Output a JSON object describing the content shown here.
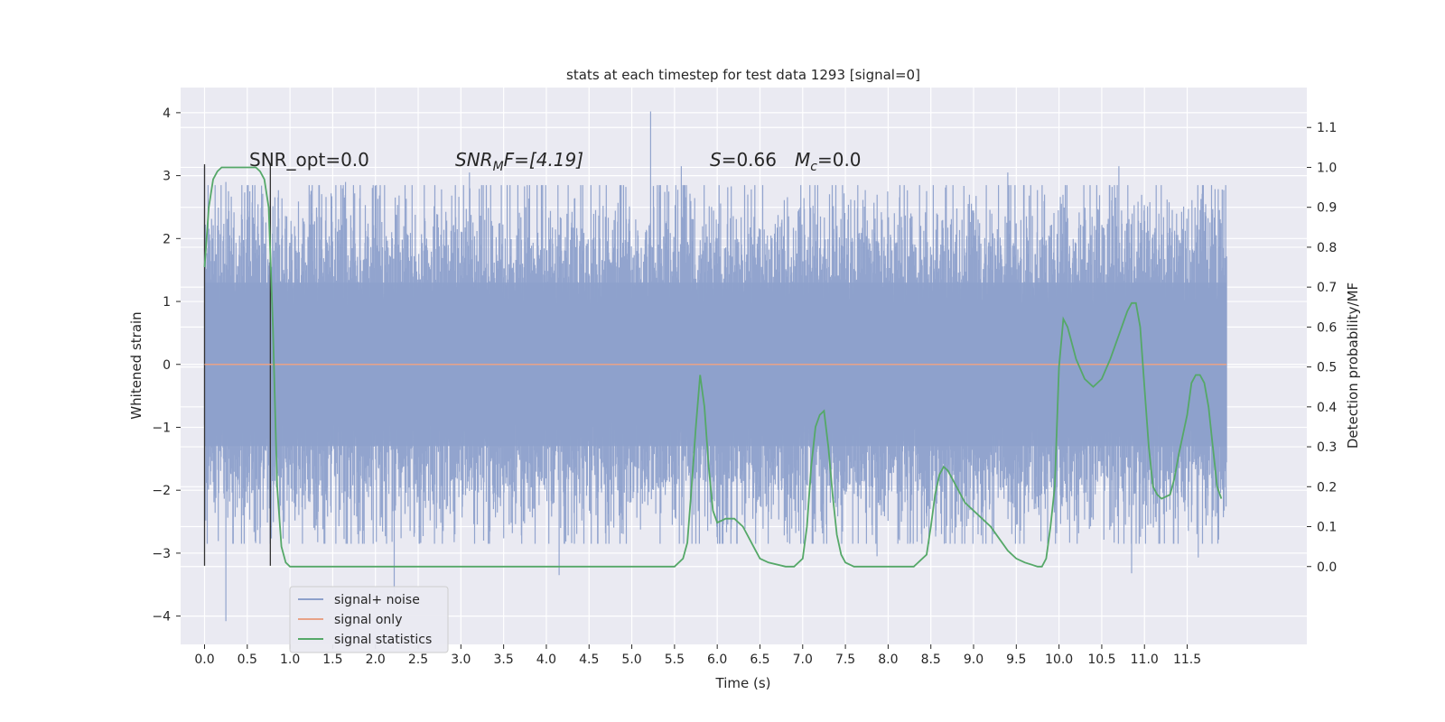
{
  "chart_data": {
    "type": "line",
    "title": "stats at each timestep for test data 1293 [signal=0]",
    "xlabel": "Time (s)",
    "ylabel_left": "Whitened strain",
    "ylabel_right": "Detection probability/MF",
    "xlim": [
      -0.28,
      12.9
    ],
    "ylim_left": [
      -4.45,
      4.4
    ],
    "ylim_right": [
      -0.195,
      1.2
    ],
    "x_ticks": [
      "0.0",
      "0.5",
      "1.0",
      "1.5",
      "2.0",
      "2.5",
      "3.0",
      "3.5",
      "4.0",
      "4.5",
      "5.0",
      "5.5",
      "6.0",
      "6.5",
      "7.0",
      "7.5",
      "8.0",
      "8.5",
      "9.0",
      "9.5",
      "10.0",
      "10.5",
      "11.0",
      "11.5"
    ],
    "y_ticks_left": [
      "4",
      "3",
      "2",
      "1",
      "0",
      "−1",
      "−2",
      "−3",
      "−4"
    ],
    "y_ticks_right": [
      "1.1",
      "1.0",
      "0.9",
      "0.8",
      "0.7",
      "0.6",
      "0.5",
      "0.4",
      "0.3",
      "0.2",
      "0.1",
      "0.0"
    ],
    "grid": true,
    "legend_position": "lower-left",
    "colors": {
      "background": "#eaeaf2",
      "grid": "#ffffff",
      "noise": "#8da0cb",
      "signal_only": "#e8a287",
      "statistics": "#55a868",
      "marker_lines": "#333333"
    },
    "annotations": {
      "snr_opt": "SNR_opt=0.0",
      "snr_mf_base": "SNR",
      "snr_mf_sub": "M",
      "snr_mf_rest": "F=[4.19]",
      "s_base": "S",
      "s_rest": "=0.66",
      "mc_base": "M",
      "mc_sub": "c",
      "mc_rest": "=0.0"
    },
    "vertical_lines_x": [
      0.0,
      0.77
    ],
    "series": [
      {
        "name": "signal+ noise",
        "axis": "left",
        "style": "noise band",
        "x_range": [
          0.0,
          11.96
        ],
        "core_band": [
          -1.3,
          1.3
        ],
        "peaks": [
          {
            "x": 0.0,
            "y": 3.15
          },
          {
            "x": 0.25,
            "y": 2.9
          },
          {
            "x": 0.53,
            "y": 2.75
          },
          {
            "x": 1.65,
            "y": 2.9
          },
          {
            "x": 3.1,
            "y": 3.05
          },
          {
            "x": 5.22,
            "y": 4.02
          },
          {
            "x": 5.58,
            "y": 3.15
          },
          {
            "x": 9.4,
            "y": 3.05
          },
          {
            "x": 10.7,
            "y": 3.15
          },
          {
            "x": 0.25,
            "y": -4.08
          },
          {
            "x": 2.22,
            "y": -3.65
          },
          {
            "x": 4.15,
            "y": -3.35
          },
          {
            "x": 10.85,
            "y": -3.32
          },
          {
            "x": 11.63,
            "y": -3.07
          },
          {
            "x": 7.87,
            "y": -3.05
          }
        ]
      },
      {
        "name": "signal only",
        "axis": "left",
        "x": [
          0.0,
          11.96
        ],
        "y": [
          0.0,
          0.0
        ]
      },
      {
        "name": "signal statistics",
        "axis": "right",
        "x": [
          0.0,
          0.05,
          0.1,
          0.15,
          0.2,
          0.3,
          0.4,
          0.5,
          0.6,
          0.65,
          0.7,
          0.75,
          0.8,
          0.85,
          0.9,
          0.95,
          1.0,
          1.5,
          2.0,
          2.5,
          3.0,
          3.5,
          4.0,
          4.5,
          5.0,
          5.5,
          5.6,
          5.65,
          5.7,
          5.75,
          5.8,
          5.85,
          5.9,
          5.95,
          6.0,
          6.1,
          6.2,
          6.3,
          6.4,
          6.45,
          6.5,
          6.6,
          6.8,
          6.9,
          7.0,
          7.05,
          7.1,
          7.15,
          7.2,
          7.25,
          7.3,
          7.35,
          7.4,
          7.45,
          7.5,
          7.6,
          7.8,
          8.0,
          8.3,
          8.45,
          8.5,
          8.55,
          8.6,
          8.65,
          8.7,
          8.75,
          8.8,
          8.9,
          9.0,
          9.1,
          9.2,
          9.3,
          9.4,
          9.5,
          9.6,
          9.75,
          9.8,
          9.85,
          9.9,
          9.95,
          10.0,
          10.05,
          10.1,
          10.2,
          10.3,
          10.4,
          10.5,
          10.6,
          10.7,
          10.8,
          10.85,
          10.9,
          10.95,
          11.0,
          11.05,
          11.1,
          11.15,
          11.2,
          11.3,
          11.35,
          11.4,
          11.5,
          11.55,
          11.6,
          11.65,
          11.7,
          11.75,
          11.8,
          11.85,
          11.9
        ],
        "y": [
          0.75,
          0.9,
          0.97,
          0.99,
          1.0,
          1.0,
          1.0,
          1.0,
          1.0,
          0.99,
          0.97,
          0.9,
          0.6,
          0.2,
          0.05,
          0.01,
          0.0,
          0.0,
          0.0,
          0.0,
          0.0,
          0.0,
          0.0,
          0.0,
          0.0,
          0.0,
          0.02,
          0.06,
          0.2,
          0.35,
          0.48,
          0.4,
          0.25,
          0.14,
          0.11,
          0.12,
          0.12,
          0.1,
          0.06,
          0.04,
          0.02,
          0.01,
          0.0,
          0.0,
          0.02,
          0.1,
          0.25,
          0.35,
          0.38,
          0.39,
          0.3,
          0.18,
          0.08,
          0.03,
          0.01,
          0.0,
          0.0,
          0.0,
          0.0,
          0.03,
          0.1,
          0.18,
          0.23,
          0.25,
          0.24,
          0.22,
          0.2,
          0.16,
          0.14,
          0.12,
          0.1,
          0.07,
          0.04,
          0.02,
          0.01,
          0.0,
          0.0,
          0.02,
          0.1,
          0.2,
          0.5,
          0.62,
          0.6,
          0.52,
          0.47,
          0.45,
          0.47,
          0.52,
          0.58,
          0.64,
          0.66,
          0.66,
          0.6,
          0.45,
          0.3,
          0.2,
          0.18,
          0.17,
          0.18,
          0.22,
          0.28,
          0.38,
          0.46,
          0.48,
          0.48,
          0.46,
          0.4,
          0.3,
          0.2,
          0.17
        ]
      }
    ]
  }
}
